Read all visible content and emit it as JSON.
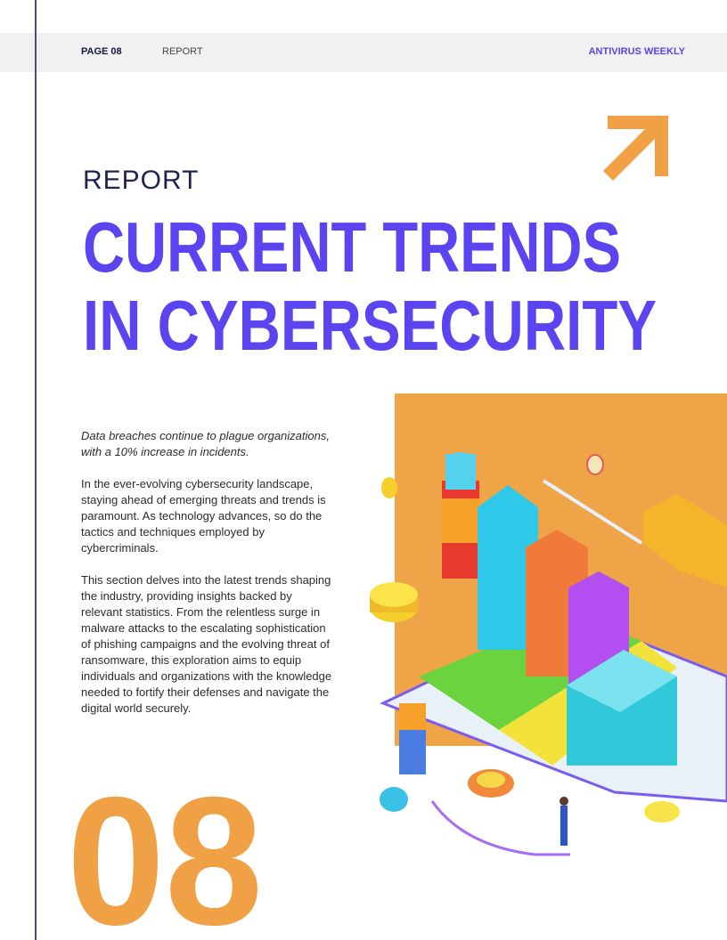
{
  "header": {
    "page": "PAGE 08",
    "section": "REPORT",
    "publication": "ANTIVIRUS WEEKLY"
  },
  "kicker": "REPORT",
  "title": [
    "CURRENT TRENDS",
    "IN CYBERSECURITY"
  ],
  "intro": "Data breaches continue to plague organizations, with a 10% increase in incidents.",
  "paragraphs": [
    "In the ever-evolving cybersecurity landscape, staying ahead of emerging threats and trends is paramount. As technology advances, so do the tactics and techniques employed by cybercriminals.",
    "This section delves into the latest trends shaping the industry, providing insights backed by relevant statistics. From the relentless surge in malware attacks to the escalating sophistication of phishing campaigns and the evolving threat of ransomware, this exploration aims to equip individuals and organizations with the knowledge needed to fortify their defenses and navigate the digital world securely."
  ],
  "big_number": "08"
}
